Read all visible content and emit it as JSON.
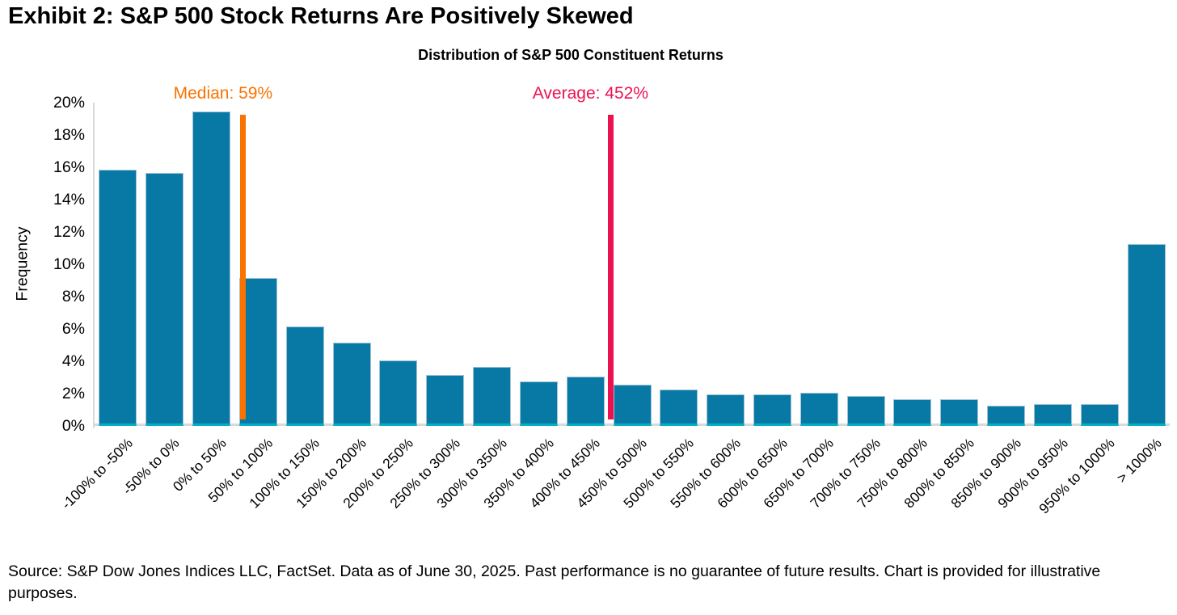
{
  "exhibit_title": "Exhibit 2: S&P 500 Stock Returns Are Positively Skewed",
  "footer": {
    "source_note": "Source: S&P Dow Jones Indices LLC, FactSet. Data as of June 30, 2025. Past performance is no guarantee of future results. Chart is provided for illustrative purposes."
  },
  "chart_data": {
    "type": "bar",
    "title": "Distribution of S&P 500 Constituent Returns",
    "xlabel": "",
    "ylabel": "Frequency",
    "ylim": [
      0,
      20
    ],
    "grid": false,
    "legend": "none",
    "ytick_labels": [
      "0%",
      "2%",
      "4%",
      "6%",
      "8%",
      "10%",
      "12%",
      "14%",
      "16%",
      "18%",
      "20%"
    ],
    "categories": [
      "-100% to -50%",
      "-50% to 0%",
      "0% to 50%",
      "50% to 100%",
      "100% to 150%",
      "150% to 200%",
      "200% to 250%",
      "250% to 300%",
      "300% to 350%",
      "350% to 400%",
      "400% to 450%",
      "450% to 500%",
      "500% to 550%",
      "550% to 600%",
      "600% to 650%",
      "650% to 700%",
      "700% to 750%",
      "750% to 800%",
      "800% to 850%",
      "850% to 900%",
      "900% to 950%",
      "950% to 1000%",
      "> 1000%"
    ],
    "values": [
      15.7,
      15.5,
      19.3,
      9.0,
      6.0,
      5.0,
      3.9,
      3.0,
      3.5,
      2.6,
      2.9,
      2.4,
      2.1,
      1.8,
      1.8,
      1.9,
      1.7,
      1.5,
      1.5,
      1.1,
      1.2,
      1.2,
      11.1
    ],
    "bin_start": -100,
    "bin_width": 50,
    "annotations": [
      {
        "name": "median",
        "label": "Median: 59%",
        "value": 59,
        "color": "#f97300"
      },
      {
        "name": "average",
        "label": "Average: 452%",
        "value": 452,
        "color": "#ec1251"
      }
    ],
    "colors": {
      "bar_fill": "#0878a4",
      "bar_edge": "#9fc3d6",
      "bar_base_accent": "#00afc5",
      "axis_line": "#d9d9d9",
      "text": "#000000"
    }
  }
}
